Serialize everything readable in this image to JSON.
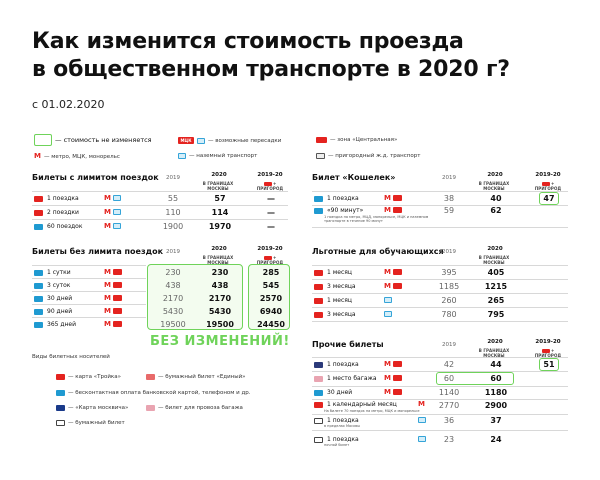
{
  "title_line1": "Как изменится стоимость проезда",
  "title_line2": "в общественном транспорте в 2020 г?",
  "date": "с 01.02.2020",
  "legend": {
    "unchanged": "— стоимость не изменяется",
    "transfers": "— возможные пересадки",
    "central": "— зона «Центральная»",
    "metro": "— метро, МЦК, монорельс",
    "ground": "— наземный транспорт",
    "suburban": "— пригородный ж.д. транспорт"
  },
  "colors": {
    "accent_green": "#6fd35a",
    "metro_red": "#e4231f",
    "bus_blue": "#35a4d8"
  },
  "col_headers": {
    "y2019": "2019",
    "y2020": "2020",
    "y2019_20": "2019-20",
    "moscow": "В ГРАНИЦАХ МОСКВЫ",
    "suburb": "+ ПРИГОРОД"
  },
  "limited": {
    "title": "Билеты с лимитом поездок",
    "rows": [
      {
        "label": "1 поездка",
        "v19": "55",
        "v20": "57",
        "v1920": "—"
      },
      {
        "label": "2 поездки",
        "v19": "110",
        "v20": "114",
        "v1920": "—"
      },
      {
        "label": "60 поездок",
        "v19": "1900",
        "v20": "1970",
        "v1920": "—"
      }
    ]
  },
  "unlimited": {
    "title": "Билеты без лимита поездок",
    "rows": [
      {
        "label": "1 сутки",
        "v19": "230",
        "v20": "230",
        "v1920": "285"
      },
      {
        "label": "3 суток",
        "v19": "438",
        "v20": "438",
        "v1920": "545"
      },
      {
        "label": "30 дней",
        "v19": "2170",
        "v20": "2170",
        "v1920": "2570"
      },
      {
        "label": "90 дней",
        "v19": "5430",
        "v20": "5430",
        "v1920": "6940"
      },
      {
        "label": "365 дней",
        "v19": "19500",
        "v20": "19500",
        "v1920": "24450"
      }
    ],
    "no_change": "БЕЗ ИЗМЕНЕНИЙ!"
  },
  "wallet": {
    "title": "Билет «Кошелек»",
    "rows": [
      {
        "label": "1 поездка",
        "v19": "38",
        "v20": "40",
        "v1920": "47",
        "sub": ""
      },
      {
        "label": "«90 минут»",
        "v19": "59",
        "v20": "62",
        "v1920": "",
        "sub": "1 поездка на метро, МЦД, монорельсе, МЦК и наземном транспорте в течение 90 минут"
      }
    ]
  },
  "student": {
    "title": "Льготные для обучающихся",
    "rows": [
      {
        "label": "1 месяц",
        "v19": "395",
        "v20": "405"
      },
      {
        "label": "3 месяца",
        "v19": "1185",
        "v20": "1215"
      },
      {
        "label": "1 месяц",
        "v19": "260",
        "v20": "265"
      },
      {
        "label": "3 месяца",
        "v19": "780",
        "v20": "795"
      }
    ]
  },
  "other": {
    "title": "Прочие билеты",
    "rows": [
      {
        "label": "1 поездка",
        "v19": "42",
        "v20": "44",
        "v1920": "51",
        "sub": ""
      },
      {
        "label": "1 место багажа",
        "v19": "60",
        "v20": "60",
        "v1920": "",
        "sub": ""
      },
      {
        "label": "30 дней",
        "v19": "1140",
        "v20": "1180",
        "v1920": "",
        "sub": ""
      },
      {
        "label": "1 календарный месяц",
        "v19": "2770",
        "v20": "2900",
        "v1920": "",
        "sub": "На билете 70 поездок на метро, МЦК и монорельсе"
      },
      {
        "label": "1 поездка",
        "v19": "36",
        "v20": "37",
        "v1920": "",
        "sub": "в пределах Москвы"
      },
      {
        "label": "1 поездка",
        "v19": "23",
        "v20": "24",
        "v1920": "",
        "sub": "ночной билет"
      }
    ]
  },
  "carriers": {
    "title": "Виды билетных носителей",
    "troika": "— карта «Тройка»",
    "edin": "— бумажный билет «Единый»",
    "bank": "— бесконтактная оплата банковской картой, телефоном и др.",
    "moscow_card": "— «Карта москвича»",
    "luggage": "— билет для провоза багажа",
    "paper": "— бумажный билет"
  }
}
